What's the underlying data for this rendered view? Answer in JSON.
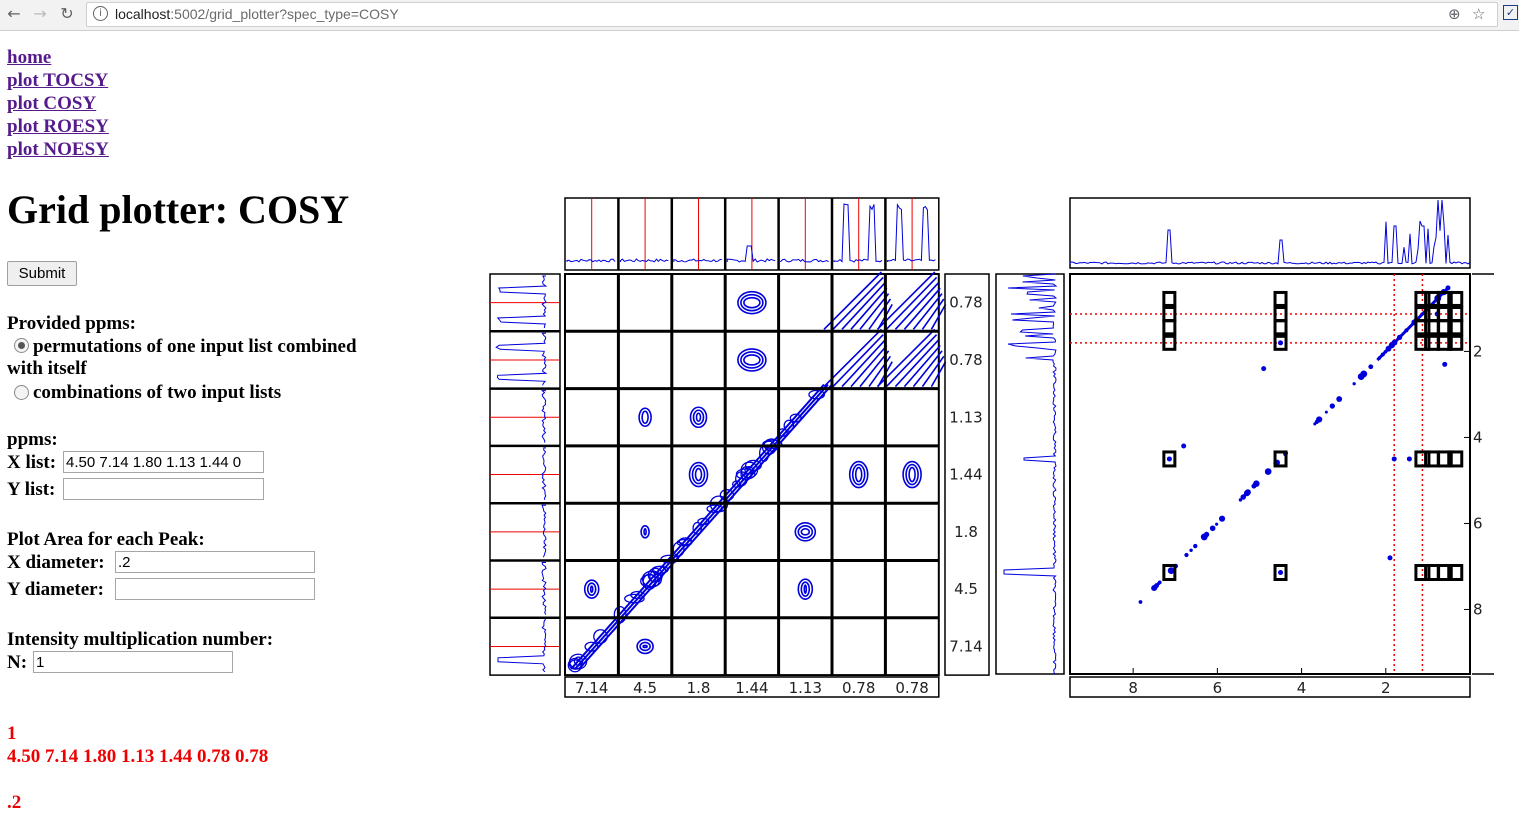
{
  "browser": {
    "url_host": "localhost",
    "url_rest": ":5002/grid_plotter?spec_type=COSY"
  },
  "nav": {
    "links": [
      "home",
      "plot TOCSY",
      "plot COSY",
      "plot ROESY",
      "plot NOESY"
    ]
  },
  "page": {
    "title": "Grid plotter: COSY",
    "submit_label": "Submit"
  },
  "form": {
    "provided_label": "Provided ppms:",
    "option1_line1": "permutations of one input list combined",
    "option1_line2": "with itself",
    "option2": "combinations of two input lists",
    "ppms_label": "ppms:",
    "xlist_label": "X list:",
    "xlist_value": "4.50 7.14 1.80 1.13 1.44 0",
    "ylist_label": "Y list:",
    "ylist_value": "",
    "plot_area_label": "Plot Area for each Peak:",
    "xdiam_label": "X diameter:",
    "xdiam_value": ".2",
    "ydiam_label": "Y diameter:",
    "ydiam_value": "",
    "intensity_label": "Intensity multiplication number:",
    "n_label": "N:",
    "n_value": "1"
  },
  "output": {
    "line1": "1",
    "line2": "4.50 7.14 1.80 1.13 1.44 0.78 0.78",
    "line3": ".2"
  },
  "grid_plot": {
    "x_labels": [
      "7.14",
      "4.5",
      "1.8",
      "1.44",
      "1.13",
      "0.78",
      "0.78"
    ],
    "y_labels": [
      "0.78",
      "0.78",
      "1.13",
      "1.44",
      "1.8",
      "4.5",
      "7.14"
    ],
    "colors": {
      "contour": "#0000dd",
      "marker": "#ee0000",
      "grid": "#000000"
    }
  },
  "full_plot": {
    "x_ticks": [
      "8",
      "6",
      "4",
      "2"
    ],
    "y_ticks": [
      "2",
      "4",
      "6",
      "8"
    ],
    "colors": {
      "peaks": "#0000dd",
      "guide": "#ee0000",
      "box": "#000000"
    }
  }
}
